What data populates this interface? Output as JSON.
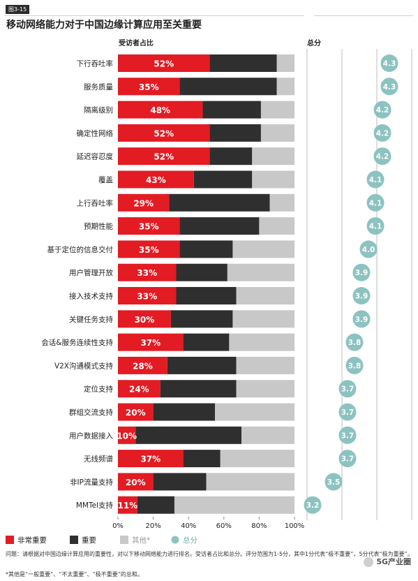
{
  "figure_tag": "图3-15",
  "footnotes": {
    "question": "问题：请根据对中国边缘计算应用的重要性，对以下移动网络能力进行排名。受访者占比和总分。评分范围为1-5分，其中1分代表“极不重要”，5分代表“极为重要”。",
    "other": "*其他是“一般重要”、“不太重要”、“极不重要”的总和。"
  },
  "watermark": "5G产业圈",
  "colors": {
    "very_important": "#e31b23",
    "important": "#2f2f2f",
    "other": "#c8c8c8",
    "score": "#8cc3c0"
  },
  "chart_data": {
    "type": "bar",
    "orientation": "horizontal",
    "stacked": true,
    "title": "移动网络能力对于中国边缘计算应用至关重要",
    "xlabel": "受访者占比",
    "score_label": "总分",
    "xlim": [
      0,
      100
    ],
    "xticks": [
      "0%",
      "20%",
      "40%",
      "60%",
      "80%",
      "100%"
    ],
    "grid": false,
    "legend_position": "bottom-left",
    "categories": [
      "下行吞吐率",
      "服务质量",
      "隔离级别",
      "确定性网络",
      "延迟容忍度",
      "覆盖",
      "上行吞吐率",
      "预期性能",
      "基于定位的信息交付",
      "用户管理开放",
      "接入技术支持",
      "关键任务支持",
      "会话&服务连续性支持",
      "V2X沟通模式支持",
      "定位支持",
      "群组交流支持",
      "用户数据接入",
      "无线频谱",
      "非IP流量支持",
      "MMTel支持"
    ],
    "series": [
      {
        "name": "非常重要",
        "values": [
          52,
          35,
          48,
          52,
          52,
          43,
          29,
          35,
          35,
          33,
          33,
          30,
          37,
          28,
          24,
          20,
          10,
          37,
          20,
          11
        ]
      },
      {
        "name": "重要",
        "values": [
          38,
          55,
          33,
          29,
          24,
          33,
          57,
          45,
          30,
          29,
          34,
          35,
          26,
          39,
          43,
          35,
          60,
          21,
          30,
          21
        ]
      },
      {
        "name": "其他*",
        "values": [
          10,
          10,
          19,
          19,
          24,
          24,
          14,
          20,
          35,
          38,
          33,
          35,
          37,
          33,
          33,
          45,
          30,
          42,
          50,
          68
        ]
      }
    ],
    "value_labels": [
      "52%",
      "35%",
      "48%",
      "52%",
      "52%",
      "43%",
      "29%",
      "35%",
      "35%",
      "33%",
      "33%",
      "30%",
      "37%",
      "28%",
      "24%",
      "20%",
      "10%",
      "37%",
      "20%",
      "11%"
    ],
    "scores": [
      4.3,
      4.3,
      4.2,
      4.2,
      4.2,
      4.1,
      4.1,
      4.1,
      4.0,
      3.9,
      3.9,
      3.9,
      3.8,
      3.8,
      3.7,
      3.7,
      3.7,
      3.7,
      3.5,
      3.2
    ],
    "score_labels": [
      "4.3",
      "4.3",
      "4.2",
      "4.2",
      "4.2",
      "4.1",
      "4.1",
      "4.1",
      "4.0",
      "3.9",
      "3.9",
      "3.9",
      "3.8",
      "3.8",
      "3.7",
      "3.7",
      "3.7",
      "3.7",
      "3.5",
      "3.2"
    ],
    "legend": [
      {
        "label": "非常重要",
        "key": "very_important"
      },
      {
        "label": "重要",
        "key": "important"
      },
      {
        "label": "其他*",
        "key": "other"
      },
      {
        "label": "总分",
        "key": "score"
      }
    ]
  }
}
